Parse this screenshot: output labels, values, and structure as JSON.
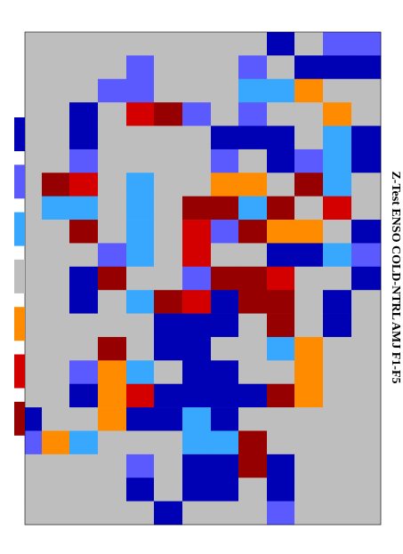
{
  "title": "Z-Test ENSO COLD-NTRL AMJ F1-F5",
  "legend_colors": [
    "#0000b4",
    "#5a5aff",
    "#38a8ff",
    "#bebebe",
    "#ff8c00",
    "#d40000",
    "#960000"
  ],
  "grid": [
    [
      3,
      3,
      3,
      3,
      3,
      3,
      3,
      3,
      3,
      0,
      3,
      1,
      1
    ],
    [
      3,
      3,
      3,
      3,
      1,
      3,
      3,
      3,
      1,
      3,
      0,
      0,
      0
    ],
    [
      3,
      3,
      3,
      1,
      1,
      3,
      3,
      3,
      2,
      2,
      4,
      3,
      3
    ],
    [
      3,
      3,
      0,
      3,
      5,
      6,
      1,
      3,
      1,
      3,
      3,
      4,
      3
    ],
    [
      3,
      3,
      0,
      3,
      3,
      3,
      3,
      0,
      0,
      0,
      3,
      2,
      0
    ],
    [
      3,
      3,
      1,
      3,
      3,
      3,
      3,
      1,
      3,
      0,
      1,
      2,
      0
    ],
    [
      3,
      6,
      5,
      3,
      2,
      3,
      3,
      4,
      4,
      3,
      6,
      2,
      3
    ],
    [
      3,
      2,
      2,
      3,
      2,
      3,
      6,
      6,
      2,
      6,
      3,
      5,
      3
    ],
    [
      3,
      3,
      6,
      3,
      2,
      3,
      5,
      1,
      6,
      4,
      4,
      3,
      0
    ],
    [
      3,
      3,
      3,
      1,
      2,
      3,
      5,
      3,
      3,
      0,
      0,
      2,
      1
    ],
    [
      3,
      3,
      0,
      6,
      3,
      3,
      1,
      6,
      6,
      5,
      3,
      3,
      0
    ],
    [
      3,
      3,
      0,
      3,
      2,
      6,
      5,
      0,
      6,
      6,
      3,
      0,
      3
    ],
    [
      3,
      3,
      3,
      3,
      3,
      0,
      0,
      0,
      3,
      6,
      3,
      0,
      3
    ],
    [
      3,
      3,
      3,
      6,
      3,
      0,
      0,
      3,
      3,
      2,
      4,
      3,
      3
    ],
    [
      3,
      3,
      1,
      4,
      2,
      3,
      0,
      0,
      3,
      3,
      4,
      3,
      3
    ],
    [
      3,
      3,
      0,
      4,
      5,
      0,
      0,
      0,
      0,
      6,
      4,
      3,
      3
    ],
    [
      0,
      3,
      3,
      4,
      0,
      0,
      2,
      0,
      3,
      3,
      3,
      3,
      3
    ],
    [
      1,
      4,
      2,
      3,
      3,
      3,
      2,
      2,
      6,
      3,
      3,
      3,
      3
    ],
    [
      3,
      3,
      3,
      3,
      1,
      3,
      0,
      0,
      6,
      0,
      3,
      3,
      3
    ],
    [
      3,
      3,
      3,
      3,
      0,
      3,
      0,
      0,
      3,
      0,
      3,
      3,
      3
    ],
    [
      3,
      3,
      3,
      3,
      3,
      0,
      3,
      3,
      3,
      1,
      3,
      3,
      3
    ]
  ]
}
